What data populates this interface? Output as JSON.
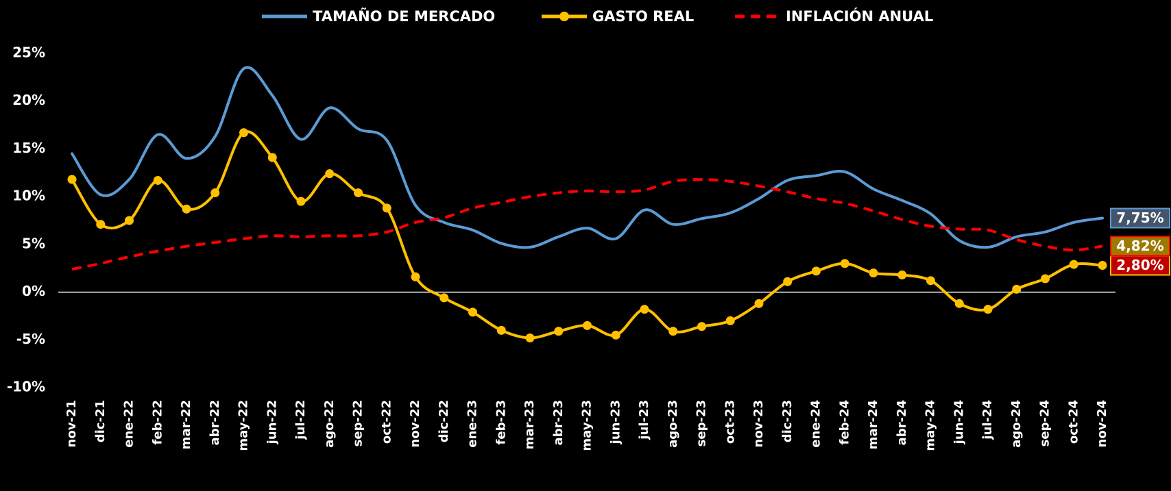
{
  "chart_data": {
    "type": "line",
    "categories": [
      "nov-21",
      "dic-21",
      "ene-22",
      "feb-22",
      "mar-22",
      "abr-22",
      "may-22",
      "jun-22",
      "jul-22",
      "ago-22",
      "sep-22",
      "oct-22",
      "nov-22",
      "dic-22",
      "ene-23",
      "feb-23",
      "mar-23",
      "abr-23",
      "may-23",
      "jun-23",
      "jul-23",
      "ago-23",
      "sep-23",
      "oct-23",
      "nov-23",
      "dic-23",
      "ene-24",
      "feb-24",
      "mar-24",
      "abr-24",
      "may-24",
      "jun-24",
      "jul-24",
      "ago-24",
      "sep-24",
      "oct-24",
      "nov-24"
    ],
    "series": [
      {
        "name": "TAMAÑO DE MERCADO",
        "color": "#5b9bd5",
        "style": "solid",
        "markers": false,
        "values": [
          14.5,
          10.2,
          11.8,
          16.5,
          14.0,
          16.3,
          23.4,
          20.6,
          16.0,
          19.3,
          17.1,
          15.9,
          9.1,
          7.3,
          6.5,
          5.1,
          4.7,
          5.8,
          6.7,
          5.6,
          8.6,
          7.1,
          7.7,
          8.3,
          9.8,
          11.7,
          12.2,
          12.6,
          10.8,
          9.6,
          8.2,
          5.4,
          4.7,
          5.8,
          6.3,
          7.3,
          7.75
        ],
        "value_labels": [
          null,
          null,
          null,
          null,
          null,
          null,
          null,
          null,
          null,
          null,
          null,
          null,
          null,
          null,
          null,
          null,
          null,
          null,
          null,
          null,
          null,
          null,
          null,
          null,
          null,
          null,
          null,
          null,
          null,
          null,
          null,
          null,
          null,
          null,
          null,
          null,
          "7,75%"
        ]
      },
      {
        "name": "GASTO REAL",
        "color": "#ffc000",
        "style": "solid",
        "markers": true,
        "values": [
          11.8,
          7.1,
          7.5,
          11.7,
          8.7,
          10.4,
          16.7,
          14.1,
          9.5,
          12.4,
          10.4,
          8.8,
          1.6,
          -0.6,
          -2.1,
          -4.0,
          -4.8,
          -4.1,
          -3.5,
          -4.5,
          -1.8,
          -4.1,
          -3.6,
          -3.0,
          -1.2,
          1.1,
          2.2,
          3.0,
          2.0,
          1.8,
          1.2,
          -1.2,
          -1.8,
          0.3,
          1.4,
          2.9,
          2.8
        ],
        "value_labels": [
          null,
          null,
          null,
          null,
          null,
          null,
          null,
          null,
          null,
          null,
          null,
          null,
          null,
          null,
          null,
          null,
          null,
          null,
          null,
          null,
          null,
          null,
          null,
          null,
          null,
          null,
          null,
          null,
          null,
          null,
          null,
          null,
          null,
          null,
          null,
          null,
          "2,80%"
        ]
      },
      {
        "name": "INFLACIÓN ANUAL",
        "color": "#ff0000",
        "style": "dashed",
        "markers": false,
        "values": [
          2.4,
          3.0,
          3.7,
          4.3,
          4.8,
          5.2,
          5.6,
          5.9,
          5.8,
          5.9,
          5.9,
          6.3,
          7.3,
          7.8,
          8.8,
          9.4,
          10.0,
          10.4,
          10.6,
          10.5,
          10.7,
          11.6,
          11.8,
          11.6,
          11.1,
          10.5,
          9.8,
          9.3,
          8.5,
          7.6,
          6.9,
          6.6,
          6.5,
          5.5,
          4.8,
          4.4,
          4.82
        ],
        "value_labels": [
          null,
          null,
          null,
          null,
          null,
          null,
          null,
          null,
          null,
          null,
          null,
          null,
          null,
          null,
          null,
          null,
          null,
          null,
          null,
          null,
          null,
          null,
          null,
          null,
          null,
          null,
          null,
          null,
          null,
          null,
          null,
          null,
          null,
          null,
          null,
          null,
          "4,82%"
        ]
      }
    ],
    "ylim": [
      -10,
      25
    ],
    "yticks": [
      {
        "value": -10,
        "label": "-10%"
      },
      {
        "value": -5,
        "label": "-5%"
      },
      {
        "value": 0,
        "label": "0%"
      },
      {
        "value": 5,
        "label": "5%"
      },
      {
        "value": 10,
        "label": "10%"
      },
      {
        "value": 15,
        "label": "15%"
      },
      {
        "value": 20,
        "label": "20%"
      },
      {
        "value": 25,
        "label": "25%"
      }
    ],
    "grid": false,
    "zero_line": true,
    "legend": "top"
  }
}
